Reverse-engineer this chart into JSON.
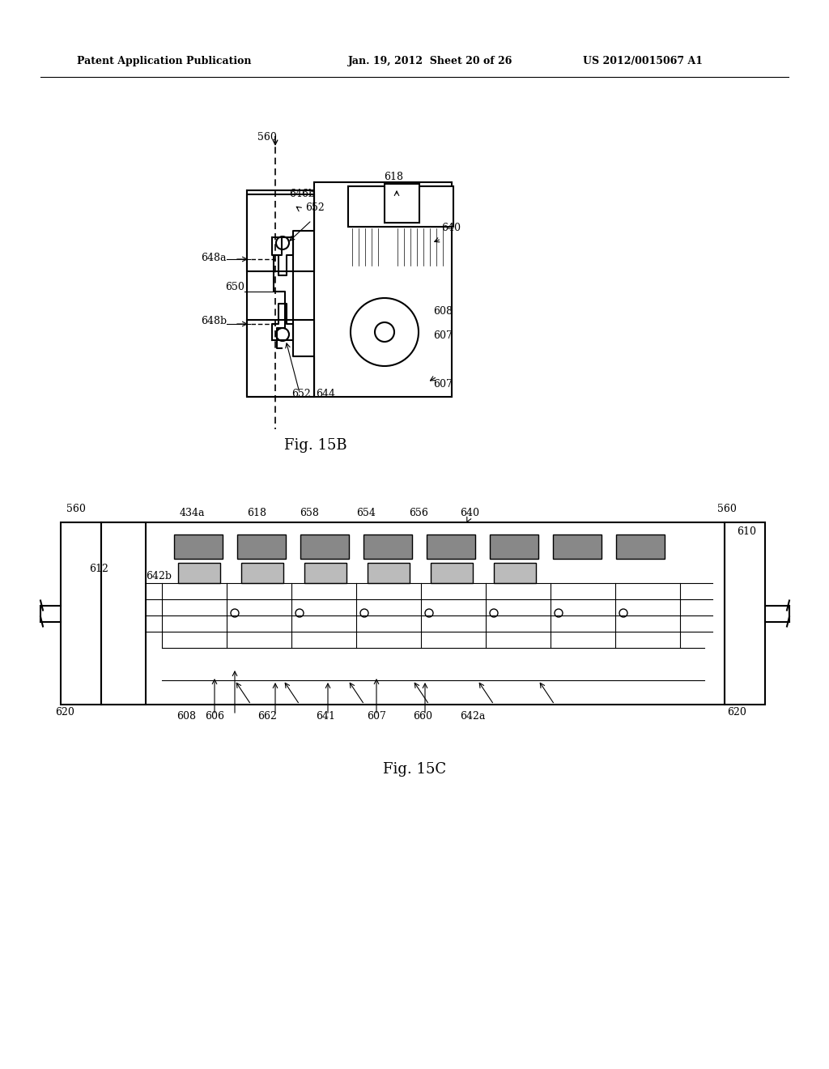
{
  "bg_color": "#ffffff",
  "header_left": "Patent Application Publication",
  "header_mid": "Jan. 19, 2012  Sheet 20 of 26",
  "header_right": "US 2012/0015067 A1",
  "fig15b_label": "Fig. 15B",
  "fig15c_label": "Fig. 15C"
}
